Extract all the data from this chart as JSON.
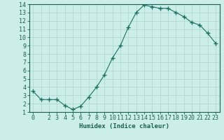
{
  "x": [
    0,
    1,
    2,
    3,
    4,
    5,
    6,
    7,
    8,
    9,
    10,
    11,
    12,
    13,
    14,
    15,
    16,
    17,
    18,
    19,
    20,
    21,
    22,
    23
  ],
  "y": [
    3.5,
    2.5,
    2.5,
    2.5,
    1.8,
    1.3,
    1.7,
    2.8,
    4.0,
    5.5,
    7.5,
    9.0,
    11.2,
    13.0,
    13.9,
    13.7,
    13.5,
    13.5,
    13.0,
    12.5,
    11.8,
    11.5,
    10.5,
    9.3
  ],
  "line_color": "#1a7060",
  "marker": "+",
  "marker_size": 4,
  "marker_lw": 1.0,
  "bg_color": "#cceee8",
  "grid_color": "#aad4cc",
  "xlabel": "Humidex (Indice chaleur)",
  "xlim": [
    -0.5,
    23.5
  ],
  "ylim": [
    1,
    14
  ],
  "yticks": [
    1,
    2,
    3,
    4,
    5,
    6,
    7,
    8,
    9,
    10,
    11,
    12,
    13,
    14
  ],
  "xticks": [
    0,
    2,
    3,
    4,
    5,
    6,
    7,
    8,
    9,
    10,
    11,
    12,
    13,
    14,
    15,
    16,
    17,
    18,
    19,
    20,
    21,
    22,
    23
  ],
  "xlabel_fontsize": 6.5,
  "tick_fontsize": 6,
  "label_color": "#1a6050",
  "axis_color": "#1a6050",
  "line_width": 0.8
}
